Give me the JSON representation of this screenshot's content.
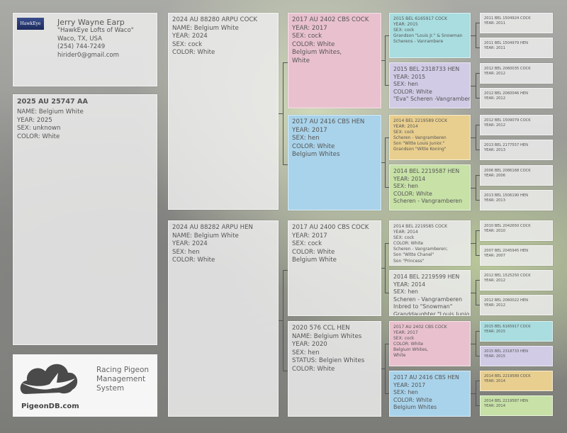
{
  "colors": {
    "pink": "#e9c1ce",
    "blue": "#a9d3ea",
    "teal": "#a9dde0",
    "lavender": "#d1cbe6",
    "orange": "#e9cf8f",
    "green": "#c7e1a7",
    "plain": "#ececec"
  },
  "owner": {
    "logo_text": "HawkEye",
    "name": "Jerry Wayne Earp",
    "loft": "\"HawkEye Lofts of Waco\"",
    "location": "Waco, TX, USA",
    "phone": "(254) 744-7249",
    "email": "hirider0@gmail.com"
  },
  "subject": {
    "lines": [
      "2025 AU  25747  AA",
      "NAME: Belgium  White",
      "YEAR: 2025",
      "SEX: unknown",
      "COLOR: White"
    ]
  },
  "footer_logo": {
    "brand": "PigeonDB.com",
    "tagline_1": "Racing Pigeon",
    "tagline_2": "Management",
    "tagline_3": "System"
  },
  "gen1": [
    {
      "color": "plain",
      "lines": [
        "2024 AU 88280  ARPU COCK",
        "NAME: Belgium  White",
        "YEAR: 2024",
        "SEX: cock",
        "COLOR: White"
      ]
    },
    {
      "color": "plain",
      "lines": [
        "2024 AU 88282  ARPU HEN",
        "NAME: Belgium  White",
        "YEAR: 2024",
        "SEX: hen",
        "COLOR: White"
      ]
    }
  ],
  "gen2": [
    {
      "color": "pink",
      "lines": [
        "2017 AU  2402  CBS COCK",
        "YEAR: 2017",
        "SEX: cock",
        "COLOR: White",
        "Belgium Whites,",
        "White"
      ]
    },
    {
      "color": "blue",
      "lines": [
        "2017 AU  2416  CBS HEN",
        "YEAR: 2017",
        "SEX: hen",
        "COLOR: White",
        "Belgium  Whites"
      ]
    },
    {
      "color": "plain",
      "lines": [
        "2017 AU  2400  CBS COCK",
        "YEAR: 2017",
        "SEX: cock",
        "COLOR: White",
        "Belgium White"
      ]
    },
    {
      "color": "plain",
      "lines": [
        "2020 576  CCL HEN",
        "NAME: Belgium Whites",
        "YEAR: 2020",
        "SEX: hen",
        "STATUS: Belgien Whites",
        "COLOR: White"
      ]
    }
  ],
  "gen3": [
    {
      "color": "teal",
      "small": true,
      "lines": [
        "2015 BEL  6165917   COCK",
        "YEAR: 2015",
        "SEX: cock",
        "Grandson  \"Louis Jr.\"  &  Snowman",
        "Scherens - Vanrambere"
      ]
    },
    {
      "color": "lavender",
      "small": false,
      "lines": [
        "2015 BEL  2318733 HEN",
        "YEAR: 2015",
        "SEX: hen",
        "COLOR: White",
        "\"Eva\"  Scheren -Vangramberen"
      ]
    },
    {
      "color": "orange",
      "small": true,
      "lines": [
        "2014 BEL  2219589 COCK",
        "YEAR: 2014",
        "SEX: cock",
        "Scheren - Vangramberen",
        "Son  \"Witte Louis Junior.\"",
        "Grandson  \"Witte Koning\""
      ]
    },
    {
      "color": "green",
      "small": false,
      "lines": [
        "2014 BEL  2219587 HEN",
        "YEAR: 2014",
        "SEX: hen",
        "COLOR: White",
        "Scheren - Vangramberen"
      ]
    },
    {
      "color": "plain",
      "small": true,
      "lines": [
        "2014 BEL  2219585 COCK",
        "YEAR: 2014",
        "SEX: cock",
        "COLOR: White",
        "Scheren - Vangramberen;",
        "Son  \"Witte Chanel\"",
        "Son  \"Princess\""
      ]
    },
    {
      "color": "plain",
      "small": false,
      "lines": [
        "2014 BEL  2219599  HEN",
        "YEAR: 2014",
        "SEX: hen",
        "Scheren - Vangramberen",
        "Inbred to \"Snowman\"",
        "Granddaughter  \"Louis Junior\""
      ]
    },
    {
      "color": "pink",
      "small": true,
      "lines": [
        "2017 AU  2402  CBS COCK",
        "YEAR: 2017",
        "SEX: cock",
        "COLOR: White",
        "Belgium Whites,",
        "White"
      ]
    },
    {
      "color": "blue",
      "small": false,
      "lines": [
        "2017 AU  2416  CBS HEN",
        "YEAR: 2017",
        "SEX: hen",
        "COLOR: White",
        "Belgium  Whites"
      ]
    }
  ],
  "gen4": [
    {
      "color": "plain",
      "lines": [
        "2011 BEL  1504924 COCK",
        "YEAR: 2011"
      ]
    },
    {
      "color": "plain",
      "lines": [
        "2011 BEL  1504979 HEN",
        "YEAR: 2011"
      ]
    },
    {
      "color": "plain",
      "lines": [
        "2012 BEL  2060035 COCK",
        "YEAR: 2012"
      ]
    },
    {
      "color": "plain",
      "lines": [
        "2012 BEL  2060046 HEN",
        "YEAR: 2012"
      ]
    },
    {
      "color": "plain",
      "lines": [
        "2012 BEL  1509079 COCK",
        "YEAR: 2012"
      ]
    },
    {
      "color": "plain",
      "lines": [
        "2013 BEL  2177557 HEN",
        "YEAR: 2013"
      ]
    },
    {
      "color": "plain",
      "lines": [
        "2006 BEL  2086168 COCK",
        "YEAR: 2006"
      ]
    },
    {
      "color": "plain",
      "lines": [
        "2013 BEL  1506190 HEN",
        "YEAR: 2013"
      ]
    },
    {
      "color": "plain",
      "lines": [
        "2010 BEL  2042650 COCK",
        "YEAR: 2010"
      ]
    },
    {
      "color": "plain",
      "lines": [
        "2007 BEL  2045945 HEN",
        "YEAR: 2007"
      ]
    },
    {
      "color": "plain",
      "lines": [
        "2012 BEL  1525250 COCK",
        "YEAR: 2012"
      ]
    },
    {
      "color": "plain",
      "lines": [
        "2012 BEL  2060022 HEN",
        "YEAR: 2012"
      ]
    },
    {
      "color": "teal",
      "lines": [
        "2015 BEL  6165917   COCK",
        "YEAR: 2015"
      ]
    },
    {
      "color": "lavender",
      "lines": [
        "2015 BEL  2318733 HEN",
        "YEAR: 2015"
      ]
    },
    {
      "color": "orange",
      "lines": [
        "2014 BEL  2219589 COCK",
        "YEAR: 2014"
      ]
    },
    {
      "color": "green",
      "lines": [
        "2014 BEL  2219587 HEN",
        "YEAR: 2014"
      ]
    }
  ]
}
